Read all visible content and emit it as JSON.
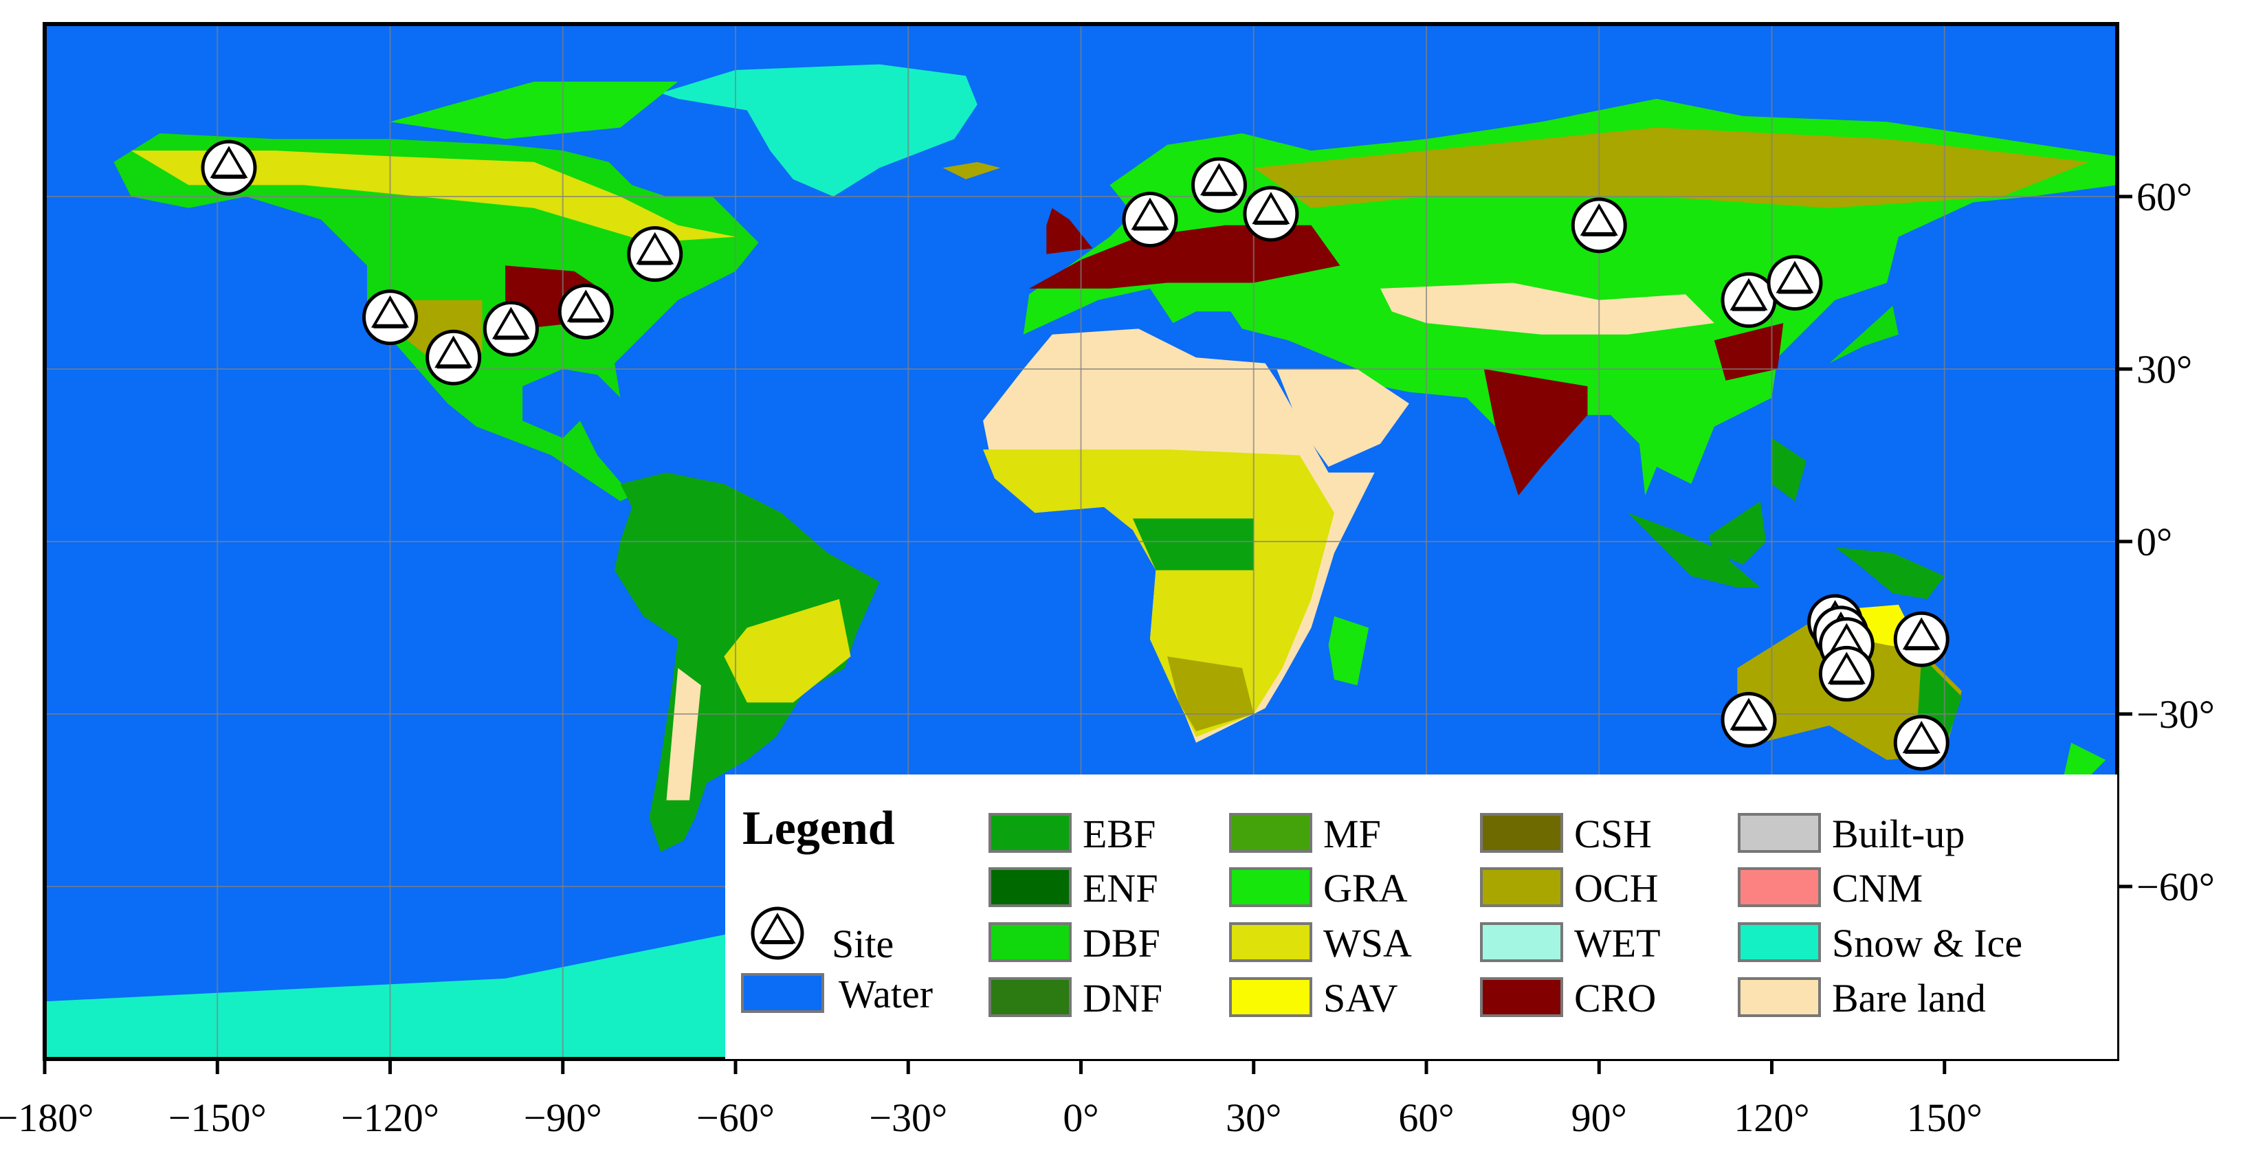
{
  "map": {
    "lon_ticks": [
      -180,
      -150,
      -120,
      -90,
      -60,
      -30,
      0,
      30,
      60,
      90,
      120,
      150
    ],
    "lon_labels": [
      "−180°",
      "−150°",
      "−120°",
      "−90°",
      "−60°",
      "−30°",
      "0°",
      "30°",
      "60°",
      "90°",
      "120°",
      "150°"
    ],
    "lat_ticks": [
      60,
      30,
      0,
      -30,
      -60
    ],
    "lat_labels": [
      "60°",
      "30°",
      "0°",
      "−30°",
      "−60°"
    ],
    "lon_range": [
      -180,
      180
    ],
    "lat_range": [
      -90,
      90
    ],
    "grid": true
  },
  "colors": {
    "Water": "#0b6cf5",
    "EBF": "#0aa30f",
    "ENF": "#006a00",
    "DBF": "#10d80c",
    "DNF": "#2c7a12",
    "MF": "#44a20a",
    "GRA": "#16e60c",
    "WSA": "#dee10a",
    "SAV": "#fbfb00",
    "CSH": "#6e6a00",
    "OCH": "#a9a600",
    "WET": "#a3f7e2",
    "CRO": "#820000",
    "Built-up": "#c8c8c8",
    "CNM": "#fc8282",
    "Snow & Ice": "#14f0c4",
    "Bare land": "#fbe2b0"
  },
  "legend": {
    "title": "Legend",
    "site_label": "Site",
    "water_label": "Water",
    "columns": [
      [
        "EBF",
        "ENF",
        "DBF",
        "DNF"
      ],
      [
        "MF",
        "GRA",
        "WSA",
        "SAV"
      ],
      [
        "CSH",
        "OCH",
        "WET",
        "CRO"
      ],
      [
        "Built-up",
        "CNM",
        "Snow & Ice",
        "Bare land"
      ]
    ]
  },
  "sites": [
    {
      "lon": -148,
      "lat": 65
    },
    {
      "lon": -120,
      "lat": 39
    },
    {
      "lon": -109,
      "lat": 32
    },
    {
      "lon": -99,
      "lat": 37
    },
    {
      "lon": -86,
      "lat": 40
    },
    {
      "lon": -74,
      "lat": 50
    },
    {
      "lon": 12,
      "lat": 56
    },
    {
      "lon": 24,
      "lat": 62
    },
    {
      "lon": 33,
      "lat": 57
    },
    {
      "lon": 90,
      "lat": 55
    },
    {
      "lon": 116,
      "lat": 42
    },
    {
      "lon": 124,
      "lat": 45
    },
    {
      "lon": 131,
      "lat": -14
    },
    {
      "lon": 132,
      "lat": -16
    },
    {
      "lon": 133,
      "lat": -18
    },
    {
      "lon": 133,
      "lat": -23
    },
    {
      "lon": 146,
      "lat": -17
    },
    {
      "lon": 116,
      "lat": -31
    },
    {
      "lon": 146,
      "lat": -35
    }
  ]
}
